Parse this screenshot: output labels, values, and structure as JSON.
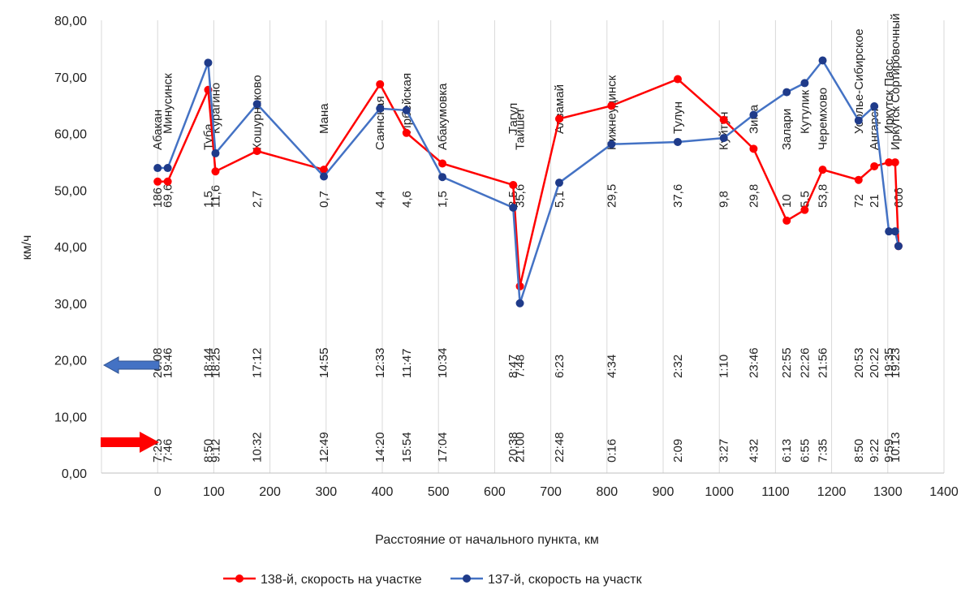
{
  "chart_data": {
    "type": "line",
    "title": "",
    "xlabel": "Расстояние от начального пункта, км",
    "ylabel": "км/ч",
    "xlim": [
      -100,
      1400
    ],
    "ylim": [
      0,
      80
    ],
    "x_ticks": [
      "0",
      "100",
      "200",
      "300",
      "400",
      "500",
      "600",
      "700",
      "800",
      "900",
      "1000",
      "1100",
      "1200",
      "1300",
      "1400"
    ],
    "y_ticks": [
      "0,00",
      "10,00",
      "20,00",
      "30,00",
      "40,00",
      "50,00",
      "60,00",
      "70,00",
      "80,00"
    ],
    "grid": "vertical",
    "legend_position": "bottom",
    "series": [
      {
        "name": "138-й, скорость на участке",
        "color": "#ff0000",
        "points": [
          [
            0,
            51.5
          ],
          [
            18,
            51.5
          ],
          [
            90,
            67.7
          ],
          [
            103,
            53.3
          ],
          [
            177,
            56.9
          ],
          [
            296,
            53.6
          ],
          [
            396,
            68.7
          ],
          [
            443,
            60.1
          ],
          [
            507,
            54.7
          ],
          [
            633,
            50.9
          ],
          [
            645,
            33.0
          ],
          [
            715,
            62.6
          ],
          [
            808,
            64.9
          ],
          [
            926,
            69.6
          ],
          [
            1008,
            62.4
          ],
          [
            1061,
            57.3
          ],
          [
            1120,
            44.6
          ],
          [
            1152,
            46.5
          ],
          [
            1184,
            53.6
          ],
          [
            1248,
            51.8
          ],
          [
            1276,
            54.2
          ],
          [
            1302,
            54.9
          ],
          [
            1313,
            54.9
          ],
          [
            1319,
            40.1
          ]
        ]
      },
      {
        "name": "137-й, скорость на участк",
        "color": "#1f3b8a",
        "points": [
          [
            0,
            53.9
          ],
          [
            18,
            53.9
          ],
          [
            90,
            72.5
          ],
          [
            103,
            56.5
          ],
          [
            177,
            65.2
          ],
          [
            296,
            52.4
          ],
          [
            396,
            64.4
          ],
          [
            443,
            64.1
          ],
          [
            507,
            52.3
          ],
          [
            633,
            46.9
          ],
          [
            645,
            30.0
          ],
          [
            715,
            51.3
          ],
          [
            808,
            58.1
          ],
          [
            926,
            58.5
          ],
          [
            1008,
            59.2
          ],
          [
            1061,
            63.3
          ],
          [
            1120,
            67.3
          ],
          [
            1152,
            68.9
          ],
          [
            1184,
            72.9
          ],
          [
            1248,
            62.3
          ],
          [
            1276,
            64.8
          ],
          [
            1302,
            42.7
          ],
          [
            1313,
            42.7
          ],
          [
            1319,
            40.1
          ]
        ]
      }
    ],
    "stations": [
      {
        "name": "Абакан",
        "x": 0
      },
      {
        "name": "Минусинск",
        "x": 18
      },
      {
        "name": "Туба",
        "x": 90
      },
      {
        "name": "Курагино",
        "x": 103
      },
      {
        "name": "Кошурниково",
        "x": 177
      },
      {
        "name": "Мана",
        "x": 296
      },
      {
        "name": "Саянская",
        "x": 396
      },
      {
        "name": "Ирбейская",
        "x": 443
      },
      {
        "name": "Абакумовка",
        "x": 507
      },
      {
        "name": "Тагул",
        "x": 633
      },
      {
        "name": "Тайшет",
        "x": 645
      },
      {
        "name": "Алзамай",
        "x": 715
      },
      {
        "name": "Нижнеудинск",
        "x": 808
      },
      {
        "name": "Тулун",
        "x": 926
      },
      {
        "name": "Куйтун",
        "x": 1008
      },
      {
        "name": "Зима",
        "x": 1061
      },
      {
        "name": "Залари",
        "x": 1120
      },
      {
        "name": "Кутулик",
        "x": 1152
      },
      {
        "name": "Черемхово",
        "x": 1184
      },
      {
        "name": "Усолье-Сибирское",
        "x": 1248
      },
      {
        "name": "Ангарск",
        "x": 1276
      },
      {
        "name": "Иркутск Пасс.",
        "x": 1302
      },
      {
        "name": "Иркутск Сортировочный",
        "x": 1313
      }
    ],
    "segment_labels": [
      {
        "text": "186",
        "x": 0
      },
      {
        "text": "69,6",
        "x": 18
      },
      {
        "text": "1,5",
        "x": 90
      },
      {
        "text": "11,6",
        "x": 103
      },
      {
        "text": "2,7",
        "x": 177
      },
      {
        "text": "0,7",
        "x": 296
      },
      {
        "text": "4,4",
        "x": 396
      },
      {
        "text": "4,6",
        "x": 443
      },
      {
        "text": "1,5",
        "x": 507
      },
      {
        "text": "8,5",
        "x": 633
      },
      {
        "text": "35,6",
        "x": 645
      },
      {
        "text": "5,1",
        "x": 715
      },
      {
        "text": "29,5",
        "x": 808
      },
      {
        "text": "37,6",
        "x": 926
      },
      {
        "text": "9,8",
        "x": 1008
      },
      {
        "text": "29,8",
        "x": 1061
      },
      {
        "text": "10",
        "x": 1120
      },
      {
        "text": "5,5",
        "x": 1152
      },
      {
        "text": "53,8",
        "x": 1184
      },
      {
        "text": "72",
        "x": 1248
      },
      {
        "text": "21",
        "x": 1276
      },
      {
        "text": "606",
        "x": 1319
      }
    ],
    "schedule_137": [
      {
        "time": "20:08",
        "x": 0
      },
      {
        "time": "19:46",
        "x": 18
      },
      {
        "time": "18:44",
        "x": 90
      },
      {
        "time": "18:25",
        "x": 103
      },
      {
        "time": "17:12",
        "x": 177
      },
      {
        "time": "14:55",
        "x": 296
      },
      {
        "time": "12:33",
        "x": 396
      },
      {
        "time": "11:47",
        "x": 443
      },
      {
        "time": "10:34",
        "x": 507
      },
      {
        "time": "8:47",
        "x": 633
      },
      {
        "time": "7:48",
        "x": 645
      },
      {
        "time": "6:23",
        "x": 715
      },
      {
        "time": "4:34",
        "x": 808
      },
      {
        "time": "2:32",
        "x": 926
      },
      {
        "time": "1:10",
        "x": 1008
      },
      {
        "time": "23:46",
        "x": 1061
      },
      {
        "time": "22:55",
        "x": 1120
      },
      {
        "time": "22:26",
        "x": 1152
      },
      {
        "time": "21:56",
        "x": 1184
      },
      {
        "time": "20:53",
        "x": 1248
      },
      {
        "time": "20:22",
        "x": 1276
      },
      {
        "time": "19:35",
        "x": 1302
      },
      {
        "time": "19:23",
        "x": 1313
      }
    ],
    "schedule_138": [
      {
        "time": "7:25",
        "x": 0
      },
      {
        "time": "7:46",
        "x": 18
      },
      {
        "time": "8:50",
        "x": 90
      },
      {
        "time": "9:12",
        "x": 103
      },
      {
        "time": "10:32",
        "x": 177
      },
      {
        "time": "12:49",
        "x": 296
      },
      {
        "time": "14:20",
        "x": 396
      },
      {
        "time": "15:54",
        "x": 443
      },
      {
        "time": "17:04",
        "x": 507
      },
      {
        "time": "20:38",
        "x": 633
      },
      {
        "time": "21:00",
        "x": 645
      },
      {
        "time": "22:48",
        "x": 715
      },
      {
        "time": "0:16",
        "x": 808
      },
      {
        "time": "2:09",
        "x": 926
      },
      {
        "time": "3:27",
        "x": 1008
      },
      {
        "time": "4:32",
        "x": 1061
      },
      {
        "time": "6:13",
        "x": 1120
      },
      {
        "time": "6:55",
        "x": 1152
      },
      {
        "time": "7:35",
        "x": 1184
      },
      {
        "time": "8:50",
        "x": 1248
      },
      {
        "time": "9:22",
        "x": 1276
      },
      {
        "time": "9:59",
        "x": 1302
      },
      {
        "time": "10:13",
        "x": 1313
      }
    ],
    "direction_137_arrow_color": "#4472c4",
    "direction_138_arrow_color": "#ff0000"
  }
}
